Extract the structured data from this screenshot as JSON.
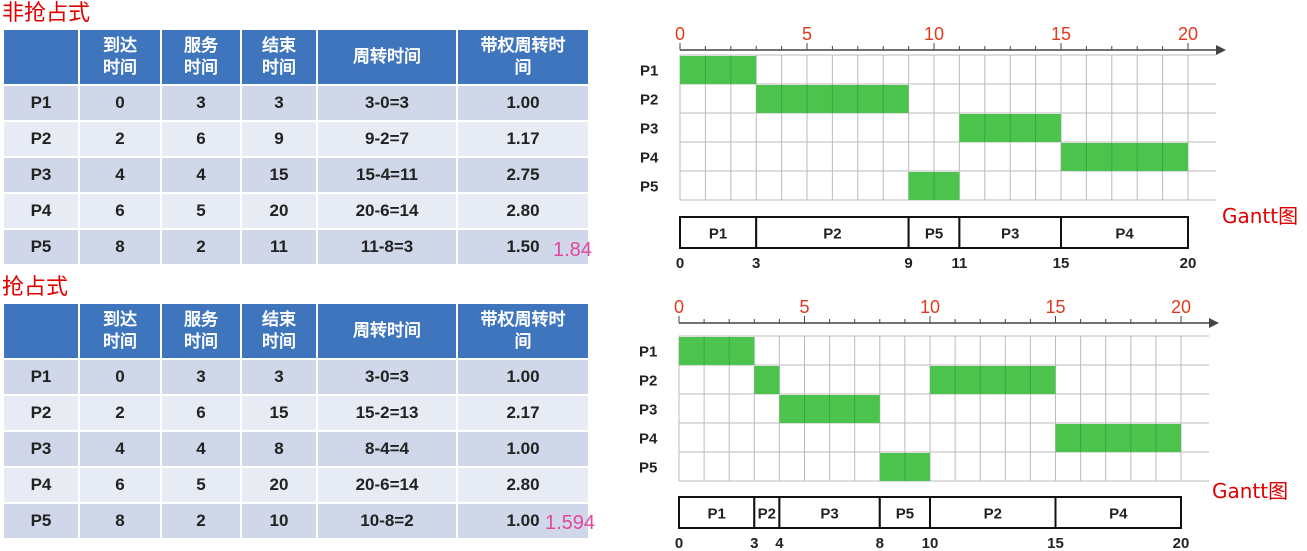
{
  "non_preemptive": {
    "title": "非抢占式",
    "headers": [
      "",
      "到达\n时间",
      "服务\n时间",
      "结束\n时间",
      "周转时间",
      "带权周转时\n间"
    ],
    "rows": [
      [
        "P1",
        "0",
        "3",
        "3",
        "3-0=3",
        "1.00"
      ],
      [
        "P2",
        "2",
        "6",
        "9",
        "9-2=7",
        "1.17"
      ],
      [
        "P3",
        "4",
        "4",
        "15",
        "15-4=11",
        "2.75"
      ],
      [
        "P4",
        "6",
        "5",
        "20",
        "20-6=14",
        "2.80"
      ],
      [
        "P5",
        "8",
        "2",
        "11",
        "11-8=3",
        "1.50"
      ]
    ],
    "average": "1.84",
    "gantt_label": "Gantt图",
    "axis_ticks": [
      "0",
      "5",
      "10",
      "15",
      "20"
    ],
    "processes": [
      "P1",
      "P2",
      "P3",
      "P4",
      "P5"
    ],
    "bars": [
      {
        "p": "P1",
        "start": 0,
        "end": 3
      },
      {
        "p": "P2",
        "start": 3,
        "end": 9
      },
      {
        "p": "P3",
        "start": 11,
        "end": 15
      },
      {
        "p": "P4",
        "start": 15,
        "end": 20
      },
      {
        "p": "P5",
        "start": 9,
        "end": 11
      }
    ],
    "timeline": [
      {
        "label": "P1",
        "start": 0,
        "end": 3
      },
      {
        "label": "P2",
        "start": 3,
        "end": 9
      },
      {
        "label": "P5",
        "start": 9,
        "end": 11
      },
      {
        "label": "P3",
        "start": 11,
        "end": 15
      },
      {
        "label": "P4",
        "start": 15,
        "end": 20
      }
    ],
    "timeline_marks": [
      "0",
      "3",
      "9",
      "11",
      "15",
      "20"
    ]
  },
  "preemptive": {
    "title": "抢占式",
    "headers": [
      "",
      "到达\n时间",
      "服务\n时间",
      "结束\n时间",
      "周转时间",
      "带权周转时\n间"
    ],
    "rows": [
      [
        "P1",
        "0",
        "3",
        "3",
        "3-0=3",
        "1.00"
      ],
      [
        "P2",
        "2",
        "6",
        "15",
        "15-2=13",
        "2.17"
      ],
      [
        "P3",
        "4",
        "4",
        "8",
        "8-4=4",
        "1.00"
      ],
      [
        "P4",
        "6",
        "5",
        "20",
        "20-6=14",
        "2.80"
      ],
      [
        "P5",
        "8",
        "2",
        "10",
        "10-8=2",
        "1.00"
      ]
    ],
    "average": "1.594",
    "gantt_label": "Gantt图",
    "axis_ticks": [
      "0",
      "5",
      "10",
      "15",
      "20"
    ],
    "processes": [
      "P1",
      "P2",
      "P3",
      "P4",
      "P5"
    ],
    "bars": [
      {
        "p": "P1",
        "start": 0,
        "end": 3
      },
      {
        "p": "P2",
        "start": 3,
        "end": 4
      },
      {
        "p": "P2",
        "start": 10,
        "end": 15
      },
      {
        "p": "P3",
        "start": 4,
        "end": 8
      },
      {
        "p": "P4",
        "start": 15,
        "end": 20
      },
      {
        "p": "P5",
        "start": 8,
        "end": 10
      }
    ],
    "timeline": [
      {
        "label": "P1",
        "start": 0,
        "end": 3
      },
      {
        "label": "P2",
        "start": 3,
        "end": 4
      },
      {
        "label": "P3",
        "start": 4,
        "end": 8
      },
      {
        "label": "P5",
        "start": 8,
        "end": 10
      },
      {
        "label": "P2",
        "start": 10,
        "end": 15
      },
      {
        "label": "P4",
        "start": 15,
        "end": 20
      }
    ],
    "timeline_marks": [
      "0",
      "3",
      "4",
      "8",
      "10",
      "15",
      "20"
    ]
  },
  "colors": {
    "bar": "#4cc34c",
    "axis_tick": "#e03a1e",
    "header_bg": "#3f75bd",
    "avg": "#e0489e",
    "title": "#e00000"
  }
}
